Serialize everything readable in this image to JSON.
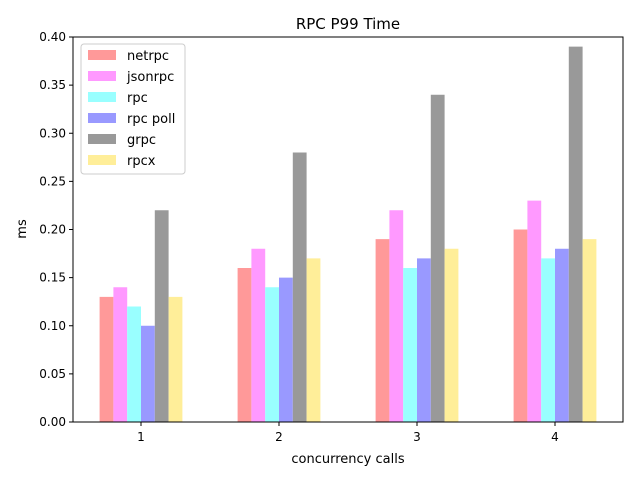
{
  "chart_data": {
    "type": "bar",
    "title": "RPC P99 Time",
    "xlabel": "concurrency calls",
    "ylabel": "ms",
    "categories": [
      "1",
      "2",
      "3",
      "4"
    ],
    "ylim": [
      0,
      0.4
    ],
    "yticks": [
      0.0,
      0.05,
      0.1,
      0.15,
      0.2,
      0.25,
      0.3,
      0.35,
      0.4
    ],
    "ytick_labels": [
      "0.00",
      "0.05",
      "0.10",
      "0.15",
      "0.20",
      "0.25",
      "0.30",
      "0.35",
      "0.40"
    ],
    "grid": false,
    "legend_position": "top-left",
    "series": [
      {
        "name": "netrpc",
        "color": "#ff9999",
        "values": [
          0.13,
          0.16,
          0.19,
          0.2
        ]
      },
      {
        "name": "jsonrpc",
        "color": "#ff99ff",
        "values": [
          0.14,
          0.18,
          0.22,
          0.23
        ]
      },
      {
        "name": "rpc",
        "color": "#99ffff",
        "values": [
          0.12,
          0.14,
          0.16,
          0.17
        ]
      },
      {
        "name": "rpc poll",
        "color": "#9999ff",
        "values": [
          0.1,
          0.15,
          0.17,
          0.18
        ]
      },
      {
        "name": "grpc",
        "color": "#999999",
        "values": [
          0.22,
          0.28,
          0.34,
          0.39
        ]
      },
      {
        "name": "rpcx",
        "color": "#ffee99",
        "values": [
          0.13,
          0.17,
          0.18,
          0.19
        ]
      }
    ]
  }
}
